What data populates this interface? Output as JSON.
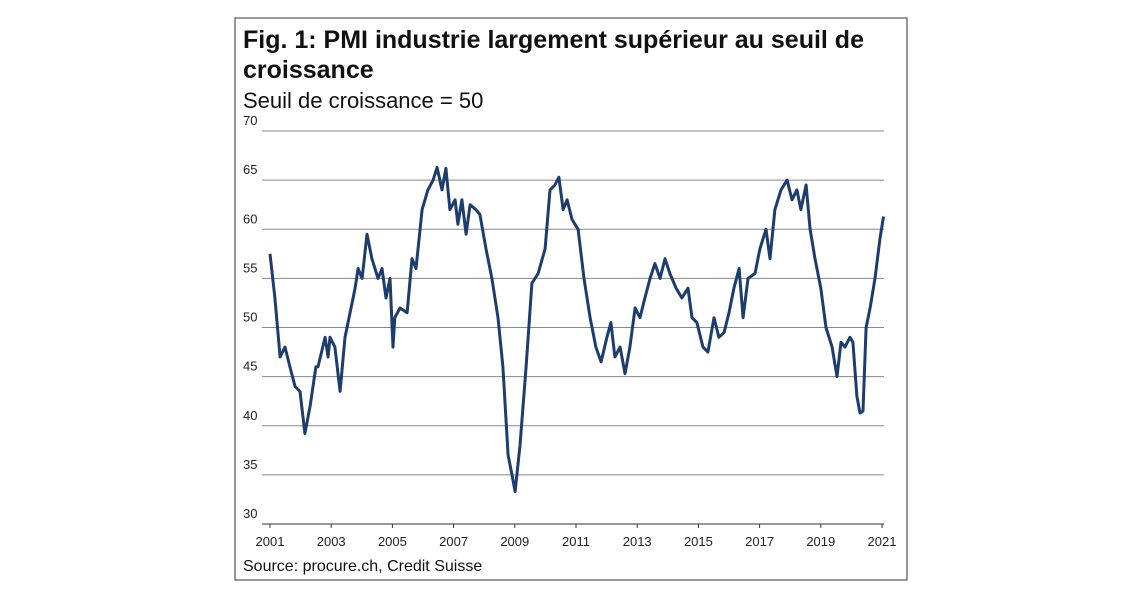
{
  "chart_data": {
    "type": "line",
    "title": "Fig. 1: PMI industrie largement supérieur au seuil de croissance",
    "subtitle": "Seuil de croissance = 50",
    "source": "Source: procure.ch, Credit Suisse",
    "x": [
      2001.0,
      2001.16,
      2001.33,
      2001.49,
      2001.65,
      2001.82,
      2001.98,
      2002.14,
      2002.31,
      2002.5,
      2002.57,
      2002.8,
      2002.9,
      2002.96,
      2003.12,
      2003.29,
      2003.45,
      2003.78,
      2003.88,
      2004.01,
      2004.17,
      2004.33,
      2004.53,
      2004.66,
      2004.79,
      2004.92,
      2005.02,
      2005.08,
      2005.25,
      2005.48,
      2005.64,
      2005.77,
      2005.97,
      2006.16,
      2006.33,
      2006.46,
      2006.62,
      2006.75,
      2006.88,
      2007.05,
      2007.14,
      2007.27,
      2007.41,
      2007.54,
      2007.73,
      2007.86,
      2008.06,
      2008.25,
      2008.45,
      2008.61,
      2008.78,
      2008.91,
      2009.01,
      2009.17,
      2009.37,
      2009.56,
      2009.76,
      2009.99,
      2010.15,
      2010.31,
      2010.44,
      2010.58,
      2010.71,
      2010.87,
      2011.07,
      2011.26,
      2011.46,
      2011.65,
      2011.82,
      2012.01,
      2012.14,
      2012.27,
      2012.44,
      2012.6,
      2012.76,
      2012.93,
      2013.09,
      2013.25,
      2013.42,
      2013.58,
      2013.75,
      2013.91,
      2014.07,
      2014.27,
      2014.46,
      2014.66,
      2014.79,
      2014.95,
      2015.15,
      2015.31,
      2015.51,
      2015.67,
      2015.84,
      2016.0,
      2016.16,
      2016.33,
      2016.46,
      2016.62,
      2016.85,
      2017.01,
      2017.21,
      2017.34,
      2017.5,
      2017.7,
      2017.9,
      2018.06,
      2018.22,
      2018.35,
      2018.52,
      2018.65,
      2018.81,
      2019.0,
      2019.17,
      2019.37,
      2019.53,
      2019.66,
      2019.79,
      2019.95,
      2020.05,
      2020.18,
      2020.28,
      2020.38,
      2020.48,
      2020.61,
      2020.77,
      2020.93,
      2021.05
    ],
    "series": [
      {
        "name": "PMI industrie",
        "color": "#1d3d6e",
        "values": [
          57.5,
          53,
          47,
          48,
          46,
          44,
          43.5,
          39.2,
          42,
          46,
          46,
          49,
          47,
          49,
          48,
          43.5,
          49,
          54,
          56,
          55,
          59.5,
          57,
          55,
          56,
          53,
          55,
          48,
          51,
          52,
          51.5,
          57,
          56,
          62,
          64,
          65,
          66.3,
          64,
          66.2,
          62,
          63,
          60.5,
          63,
          59.5,
          62.5,
          62,
          61.5,
          58,
          55,
          51,
          46,
          37,
          35,
          33.3,
          38,
          46,
          54.5,
          55.5,
          58,
          64,
          64.5,
          65.3,
          62,
          63,
          61,
          60,
          55,
          51,
          48,
          46.5,
          49,
          50.5,
          47,
          48,
          45.3,
          48,
          52,
          51,
          53,
          55,
          56.5,
          55,
          57,
          55.5,
          54,
          53,
          54,
          51,
          50.5,
          48,
          47.5,
          51,
          49,
          49.5,
          51.5,
          54,
          56,
          51,
          55,
          55.5,
          58,
          60,
          57,
          62,
          64,
          65,
          63,
          64,
          62,
          64.5,
          60,
          57,
          54,
          50,
          48,
          45,
          48.5,
          48,
          49,
          48.5,
          43,
          41.3,
          41.5,
          50,
          52,
          55,
          59,
          61.3
        ]
      }
    ],
    "xlim": [
      2001,
      2021
    ],
    "xticks": [
      2001,
      2003,
      2005,
      2007,
      2009,
      2011,
      2013,
      2015,
      2017,
      2019,
      2021
    ],
    "ylim": [
      30,
      70
    ],
    "yticks": [
      30,
      35,
      40,
      45,
      50,
      55,
      60,
      65,
      70
    ],
    "grid": true
  }
}
